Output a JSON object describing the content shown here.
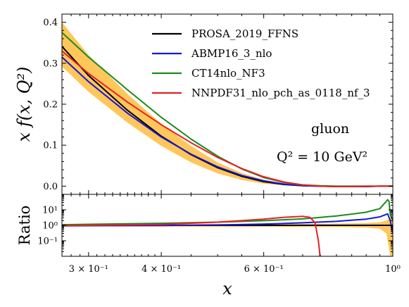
{
  "chart_data": [
    {
      "type": "line",
      "panel": "main",
      "ylabel": "x f(x, Q²)",
      "xscale": "log",
      "xlim": [
        0.27,
        1.0
      ],
      "ylim": [
        -0.02,
        0.42
      ],
      "yticks": [
        0.0,
        0.1,
        0.2,
        0.3,
        0.4
      ],
      "ytick_labels": [
        "0.0",
        "0.1",
        "0.2",
        "0.3",
        "0.4"
      ],
      "annotations": [
        "gluon",
        "Q² = 10 GeV²"
      ],
      "legend_position": "top-right",
      "x": [
        0.27,
        0.3,
        0.35,
        0.4,
        0.45,
        0.5,
        0.55,
        0.6,
        0.65,
        0.7,
        0.75,
        0.8,
        0.85,
        0.9,
        0.95,
        1.0
      ],
      "band": {
        "name": "PROSA_2019_FFNS uncertainty",
        "color": "#ffc75a",
        "lower": [
          0.292,
          0.23,
          0.155,
          0.098,
          0.058,
          0.031,
          0.015,
          0.006,
          0.002,
          0.0,
          -0.001,
          -0.001,
          -0.001,
          -0.001,
          -0.001,
          0.0
        ],
        "upper": [
          0.4,
          0.32,
          0.225,
          0.152,
          0.098,
          0.058,
          0.032,
          0.016,
          0.007,
          0.002,
          0.0,
          0.0,
          0.0,
          0.0,
          0.0,
          0.0
        ]
      },
      "series": [
        {
          "name": "PROSA_2019_FFNS",
          "color": "#000000",
          "values": [
            0.341,
            0.27,
            0.185,
            0.122,
            0.077,
            0.045,
            0.024,
            0.011,
            0.004,
            0.001,
            0.0,
            -0.001,
            -0.001,
            -0.001,
            0.0,
            0.0
          ]
        },
        {
          "name": "ABMP16_3_nlo",
          "color": "#1515d8",
          "values": [
            0.315,
            0.255,
            0.178,
            0.12,
            0.078,
            0.047,
            0.026,
            0.013,
            0.005,
            0.001,
            0.0,
            -0.001,
            -0.001,
            -0.001,
            0.0,
            0.0
          ]
        },
        {
          "name": "CT14nlo_NF3",
          "color": "#1c8a1c",
          "values": [
            0.375,
            0.315,
            0.235,
            0.168,
            0.115,
            0.073,
            0.042,
            0.021,
            0.009,
            0.003,
            0.001,
            0.0,
            0.0,
            0.0,
            0.0,
            0.0
          ]
        },
        {
          "name": "NNPDF31_nlo_pch_as_0118_nf_3",
          "color": "#e52222",
          "values": [
            0.33,
            0.275,
            0.205,
            0.15,
            0.106,
            0.07,
            0.043,
            0.023,
            0.01,
            0.003,
            0.0,
            -0.001,
            -0.001,
            0.0,
            0.0,
            0.0
          ]
        }
      ]
    },
    {
      "type": "line",
      "panel": "ratio",
      "xlabel": "x",
      "ylabel": "Ratio",
      "xscale": "log",
      "yscale": "log",
      "xlim": [
        0.27,
        1.0
      ],
      "ylim": [
        0.01,
        100
      ],
      "yticks": [
        0.1,
        1,
        10
      ],
      "ytick_labels": [
        "10⁻¹",
        "10⁰",
        "10¹"
      ],
      "xticks": [
        0.3,
        0.4,
        0.6,
        1.0
      ],
      "xtick_labels": [
        "3 × 10⁻¹",
        "4 × 10⁻¹",
        "6 × 10⁻¹",
        "10⁰"
      ],
      "band": {
        "name": "PROSA_2019_FFNS uncertainty",
        "color": "#ffc75a",
        "x": [
          0.27,
          0.4,
          0.6,
          0.8,
          0.9,
          0.95,
          0.975,
          0.99,
          1.0
        ],
        "lower": [
          0.85,
          0.83,
          0.8,
          0.78,
          0.72,
          0.6,
          0.3,
          0.01,
          0.01
        ],
        "upper": [
          1.18,
          1.2,
          1.25,
          1.3,
          1.4,
          1.6,
          2.0,
          3.0,
          3.0
        ]
      },
      "series": [
        {
          "name": "PROSA_2019_FFNS",
          "color": "#000000",
          "x": [
            0.27,
            0.5,
            0.8,
            0.99,
            1.0
          ],
          "values": [
            1.0,
            1.0,
            1.0,
            1.0,
            1.0
          ]
        },
        {
          "name": "ABMP16_3_nlo",
          "color": "#1515d8",
          "x": [
            0.27,
            0.4,
            0.5,
            0.6,
            0.7,
            0.8,
            0.9,
            0.95,
            0.98,
            0.99,
            1.0
          ],
          "values": [
            0.93,
            0.98,
            1.05,
            1.2,
            1.45,
            1.8,
            2.5,
            3.5,
            5.5,
            2.0,
            0.3
          ]
        },
        {
          "name": "CT14nlo_NF3",
          "color": "#1c8a1c",
          "x": [
            0.27,
            0.4,
            0.5,
            0.6,
            0.7,
            0.8,
            0.9,
            0.95,
            0.98,
            0.985,
            0.99,
            1.0
          ],
          "values": [
            1.1,
            1.35,
            1.6,
            2.0,
            2.6,
            4.0,
            7.0,
            12.0,
            45.0,
            35.0,
            5.0,
            2.0
          ]
        },
        {
          "name": "NNPDF31_nlo_pch_as_0118_nf_3",
          "color": "#e52222",
          "x": [
            0.27,
            0.4,
            0.5,
            0.6,
            0.65,
            0.7,
            0.72,
            0.735,
            0.745,
            0.75
          ],
          "values": [
            0.95,
            1.15,
            1.6,
            2.5,
            3.3,
            3.8,
            3.3,
            1.5,
            0.1,
            0.01
          ]
        }
      ]
    }
  ]
}
